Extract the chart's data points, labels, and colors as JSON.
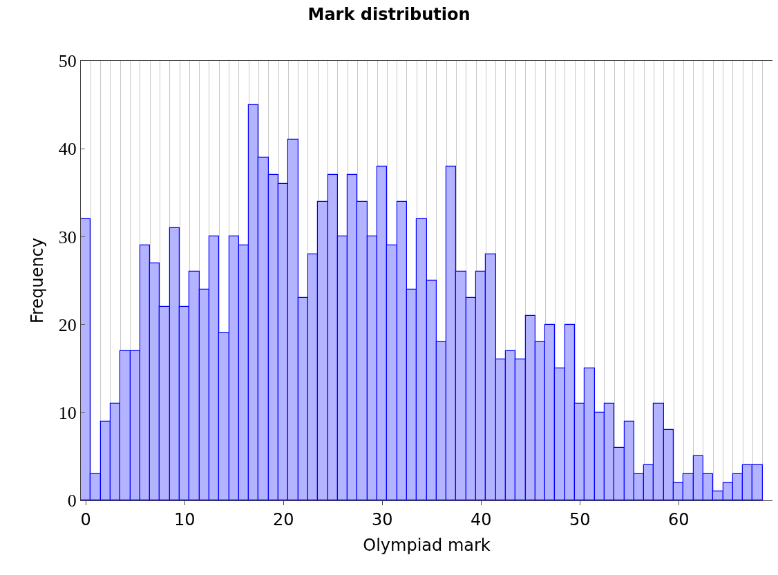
{
  "chart_data": {
    "type": "histogram",
    "title": "Mark distribution",
    "xlabel": "Olympiad mark",
    "ylabel": "Frequency",
    "bins": [
      -0.5,
      0.5,
      1.5,
      2.5,
      3.5,
      4.5,
      5.5,
      6.5,
      7.5,
      8.5,
      9.5,
      10.5,
      11.5,
      12.5,
      13.5,
      14.5,
      15.5,
      16.5,
      17.5,
      18.5,
      19.5,
      20.5,
      21.5,
      22.5,
      23.5,
      24.5,
      25.5,
      26.5,
      27.5,
      28.5,
      29.5,
      30.5,
      31.5,
      32.5,
      33.5,
      34.5,
      35.5,
      36.5,
      37.5,
      38.5,
      39.5,
      40.5,
      41.5,
      42.5,
      43.5,
      44.5,
      45.5,
      46.5,
      47.5,
      48.5,
      49.5,
      50.5,
      51.5,
      52.5,
      53.5,
      54.5,
      55.5,
      56.5,
      57.5,
      58.5,
      59.5,
      60.5,
      61.5,
      62.5,
      63.5,
      64.5,
      65.5,
      66.5,
      67.5,
      68.5,
      69.5
    ],
    "values": [
      32,
      3,
      9,
      11,
      17,
      17,
      29,
      27,
      22,
      31,
      22,
      26,
      24,
      30,
      19,
      30,
      29,
      45,
      39,
      37,
      36,
      41,
      23,
      28,
      34,
      37,
      30,
      37,
      34,
      30,
      38,
      29,
      34,
      24,
      32,
      25,
      18,
      38,
      26,
      23,
      26,
      28,
      16,
      17,
      16,
      21,
      18,
      20,
      15,
      20,
      11,
      15,
      10,
      11,
      6,
      9,
      3,
      4,
      11,
      8,
      2,
      3,
      5,
      3,
      1,
      2,
      3,
      4,
      4,
      0
    ],
    "color": "#b3b3ff",
    "xlim": [
      -0.5,
      69.5
    ],
    "ylim": [
      0,
      50
    ],
    "xticks": [
      0,
      10,
      20,
      30,
      40,
      50,
      60
    ],
    "yticks": [
      0,
      10,
      20,
      30,
      40,
      50
    ],
    "grid": "x"
  }
}
